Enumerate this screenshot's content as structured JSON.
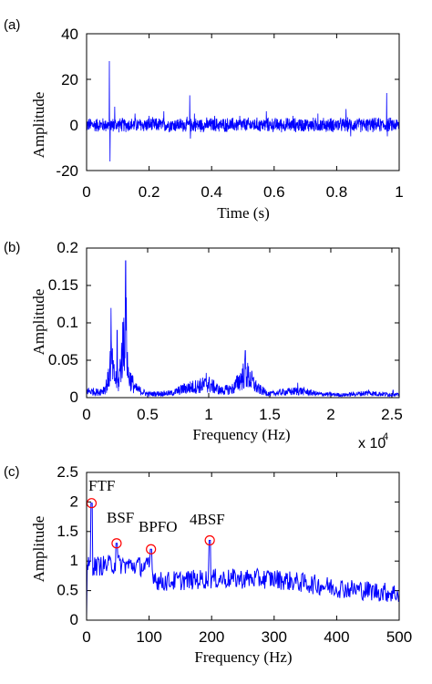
{
  "chart_data": [
    {
      "type": "line",
      "panel_label": "(a)",
      "xlabel": "Time (s)",
      "ylabel": "Amplitude",
      "xlim": [
        0,
        1
      ],
      "ylim": [
        -20,
        40
      ],
      "xticks": [
        0,
        0.2,
        0.4,
        0.6,
        0.8,
        1
      ],
      "xtick_labels": [
        "0",
        "0.2",
        "0.4",
        "0.6",
        "0.8",
        "1"
      ],
      "yticks": [
        -20,
        0,
        20,
        40
      ],
      "ytick_labels": [
        "-20",
        "0",
        "20",
        "40"
      ],
      "line_color": "#0000ff",
      "noise_amplitude": 3,
      "spikes": [
        {
          "x": 0.073,
          "y": 28
        },
        {
          "x": 0.075,
          "y": -16
        },
        {
          "x": 0.09,
          "y": 8
        },
        {
          "x": 0.155,
          "y": 5
        },
        {
          "x": 0.2,
          "y": 4
        },
        {
          "x": 0.247,
          "y": 6
        },
        {
          "x": 0.33,
          "y": 13
        },
        {
          "x": 0.332,
          "y": -6
        },
        {
          "x": 0.345,
          "y": 5
        },
        {
          "x": 0.41,
          "y": 4
        },
        {
          "x": 0.49,
          "y": 4
        },
        {
          "x": 0.575,
          "y": 6
        },
        {
          "x": 0.66,
          "y": 4
        },
        {
          "x": 0.74,
          "y": 5
        },
        {
          "x": 0.83,
          "y": 7
        },
        {
          "x": 0.845,
          "y": -5
        },
        {
          "x": 0.96,
          "y": 14
        },
        {
          "x": 0.962,
          "y": -5
        }
      ]
    },
    {
      "type": "line",
      "panel_label": "(b)",
      "xlabel": "Frequency (Hz)",
      "ylabel": "Amplitude",
      "xlim": [
        0,
        25600
      ],
      "ylim": [
        0,
        0.2
      ],
      "xticks": [
        0,
        5000,
        10000,
        15000,
        20000,
        25000
      ],
      "xtick_labels": [
        "0",
        "0.5",
        "1",
        "1.5",
        "2",
        "2.5"
      ],
      "yticks": [
        0,
        0.05,
        0.1,
        0.15,
        0.2
      ],
      "ytick_labels": [
        "0",
        "0.05",
        "0.1",
        "0.15",
        "0.2"
      ],
      "x_multiplier_base": "x 10",
      "x_multiplier_exp": "4",
      "line_color": "#0000ff",
      "envelope": [
        [
          0,
          0.015
        ],
        [
          1000,
          0.012
        ],
        [
          1500,
          0.02
        ],
        [
          1800,
          0.04
        ],
        [
          2000,
          0.09
        ],
        [
          2200,
          0.05
        ],
        [
          2600,
          0.03
        ],
        [
          3000,
          0.12
        ],
        [
          3200,
          0.18
        ],
        [
          3400,
          0.05
        ],
        [
          4000,
          0.02
        ],
        [
          5000,
          0.008
        ],
        [
          7000,
          0.01
        ],
        [
          8000,
          0.02
        ],
        [
          9000,
          0.025
        ],
        [
          10000,
          0.03
        ],
        [
          11000,
          0.015
        ],
        [
          12000,
          0.02
        ],
        [
          13000,
          0.055
        ],
        [
          14000,
          0.02
        ],
        [
          15000,
          0.008
        ],
        [
          16000,
          0.012
        ],
        [
          17500,
          0.015
        ],
        [
          19000,
          0.008
        ],
        [
          21000,
          0.006
        ],
        [
          23000,
          0.01
        ],
        [
          25600,
          0.006
        ]
      ],
      "peaks": [
        {
          "x": 2000,
          "y": 0.12
        },
        {
          "x": 3200,
          "y": 0.183
        },
        {
          "x": 2500,
          "y": 0.09
        },
        {
          "x": 9800,
          "y": 0.033
        },
        {
          "x": 13000,
          "y": 0.063
        },
        {
          "x": 17300,
          "y": 0.02
        },
        {
          "x": 23100,
          "y": 0.01
        },
        {
          "x": 25100,
          "y": 0.01
        }
      ]
    },
    {
      "type": "line",
      "panel_label": "(c)",
      "xlabel": "Frequency (Hz)",
      "ylabel": "Amplitude",
      "xlim": [
        0,
        500
      ],
      "ylim": [
        0,
        2.5
      ],
      "xticks": [
        0,
        100,
        200,
        300,
        400,
        500
      ],
      "xtick_labels": [
        "0",
        "100",
        "200",
        "300",
        "400",
        "500"
      ],
      "yticks": [
        0,
        0.5,
        1,
        1.5,
        2,
        2.5
      ],
      "ytick_labels": [
        "0",
        "0.5",
        "1",
        "1.5",
        "2",
        "2.5"
      ],
      "line_color": "#0000ff",
      "marker_color": "#ff0000",
      "trend": [
        [
          0,
          0.9
        ],
        [
          50,
          0.95
        ],
        [
          100,
          0.9
        ],
        [
          115,
          0.65
        ],
        [
          200,
          0.7
        ],
        [
          300,
          0.7
        ],
        [
          400,
          0.55
        ],
        [
          500,
          0.45
        ]
      ],
      "noise_amplitude": 0.17,
      "annotations": [
        {
          "label": "FTF",
          "x": 8,
          "y": 1.98
        },
        {
          "label": "BSF",
          "x": 48,
          "y": 1.3
        },
        {
          "label": "BPFO",
          "x": 103,
          "y": 1.2
        },
        {
          "label": "4BSF",
          "x": 197,
          "y": 1.35
        }
      ]
    }
  ]
}
